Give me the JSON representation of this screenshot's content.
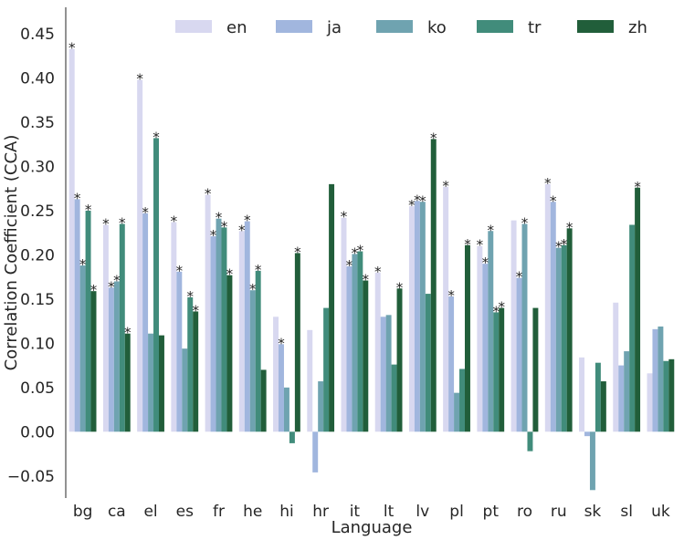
{
  "chart_data": {
    "type": "bar",
    "xlabel": "Language",
    "ylabel": "Correlation Coefficient (CCA)",
    "ylim": [
      -0.075,
      0.48
    ],
    "yticks": [
      -0.05,
      0.0,
      0.05,
      0.1,
      0.15,
      0.2,
      0.25,
      0.3,
      0.35,
      0.4,
      0.45
    ],
    "ytick_labels": [
      "−0.05",
      "0.00",
      "0.05",
      "0.10",
      "0.15",
      "0.20",
      "0.25",
      "0.30",
      "0.35",
      "0.40",
      "0.45"
    ],
    "categories": [
      "bg",
      "ca",
      "el",
      "es",
      "fr",
      "he",
      "hi",
      "hr",
      "it",
      "lt",
      "lv",
      "pl",
      "pt",
      "ro",
      "ru",
      "sk",
      "sl",
      "uk"
    ],
    "legend_position": "top",
    "grid": false,
    "significance_marker": "*",
    "series": [
      {
        "name": "en",
        "color": "#d8d8f0",
        "values": [
          0.433,
          0.234,
          0.398,
          0.237,
          0.268,
          0.227,
          0.13,
          0.115,
          0.242,
          0.18,
          0.255,
          0.277,
          0.21,
          0.239,
          0.28,
          0.084,
          0.146,
          0.066
        ],
        "significant": [
          true,
          true,
          true,
          true,
          true,
          true,
          false,
          false,
          true,
          true,
          true,
          true,
          true,
          false,
          true,
          false,
          false,
          false
        ]
      },
      {
        "name": "ja",
        "color": "#a1b6de",
        "values": [
          0.263,
          0.163,
          0.247,
          0.181,
          0.221,
          0.238,
          0.099,
          -0.046,
          0.187,
          0.13,
          0.261,
          0.153,
          0.19,
          0.174,
          0.26,
          -0.005,
          0.075,
          0.116
        ],
        "significant": [
          true,
          true,
          true,
          true,
          true,
          true,
          true,
          false,
          true,
          false,
          true,
          true,
          true,
          true,
          true,
          false,
          false,
          false
        ]
      },
      {
        "name": "ko",
        "color": "#6fa3b0",
        "values": [
          0.188,
          0.17,
          0.111,
          0.094,
          0.241,
          0.16,
          0.05,
          0.057,
          0.201,
          0.132,
          0.26,
          0.044,
          0.227,
          0.235,
          0.208,
          -0.066,
          0.091,
          0.119
        ],
        "significant": [
          true,
          true,
          false,
          false,
          true,
          true,
          false,
          false,
          true,
          false,
          true,
          false,
          true,
          true,
          true,
          false,
          false,
          false
        ]
      },
      {
        "name": "tr",
        "color": "#418c7b",
        "values": [
          0.25,
          0.235,
          0.332,
          0.152,
          0.231,
          0.182,
          -0.013,
          0.14,
          0.204,
          0.076,
          0.156,
          0.071,
          0.135,
          -0.022,
          0.211,
          0.078,
          0.234,
          0.08
        ],
        "significant": [
          true,
          true,
          true,
          true,
          true,
          true,
          false,
          false,
          true,
          false,
          false,
          false,
          true,
          false,
          true,
          false,
          false,
          false
        ]
      },
      {
        "name": "zh",
        "color": "#215e3a",
        "values": [
          0.159,
          0.111,
          0.109,
          0.136,
          0.177,
          0.07,
          0.202,
          0.28,
          0.171,
          0.162,
          0.331,
          0.211,
          0.14,
          0.14,
          0.23,
          0.057,
          0.276,
          0.082
        ],
        "significant": [
          true,
          true,
          false,
          true,
          true,
          false,
          true,
          false,
          true,
          true,
          true,
          true,
          true,
          false,
          true,
          false,
          true,
          false
        ]
      }
    ]
  }
}
